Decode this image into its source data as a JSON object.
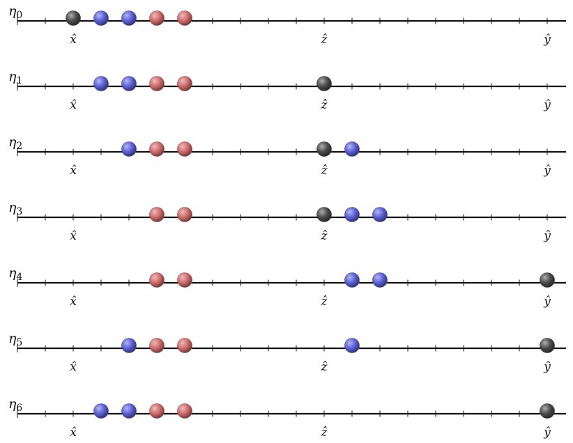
{
  "diagram": {
    "labels": {
      "x": "x̂",
      "z": "ẑ",
      "y": "ŷ"
    },
    "label_positions": {
      "x": 2,
      "z": 11,
      "y": 19
    },
    "tick_count": 20,
    "colors": {
      "black": "#4a4a4a",
      "blue": "#5b5fd6",
      "red": "#d06a6a",
      "line": "#111111"
    },
    "rows": [
      {
        "eta": "η",
        "sub": "0",
        "balls": [
          {
            "pos": 2,
            "c": "black"
          },
          {
            "pos": 3,
            "c": "blue"
          },
          {
            "pos": 4,
            "c": "blue"
          },
          {
            "pos": 5,
            "c": "red"
          },
          {
            "pos": 6,
            "c": "red"
          }
        ]
      },
      {
        "eta": "η",
        "sub": "1",
        "balls": [
          {
            "pos": 3,
            "c": "blue"
          },
          {
            "pos": 4,
            "c": "blue"
          },
          {
            "pos": 5,
            "c": "red"
          },
          {
            "pos": 6,
            "c": "red"
          },
          {
            "pos": 11,
            "c": "black"
          }
        ]
      },
      {
        "eta": "η",
        "sub": "2",
        "balls": [
          {
            "pos": 4,
            "c": "blue"
          },
          {
            "pos": 5,
            "c": "red"
          },
          {
            "pos": 6,
            "c": "red"
          },
          {
            "pos": 11,
            "c": "black"
          },
          {
            "pos": 12,
            "c": "blue"
          }
        ]
      },
      {
        "eta": "η",
        "sub": "3",
        "balls": [
          {
            "pos": 5,
            "c": "red"
          },
          {
            "pos": 6,
            "c": "red"
          },
          {
            "pos": 11,
            "c": "black"
          },
          {
            "pos": 12,
            "c": "blue"
          },
          {
            "pos": 13,
            "c": "blue"
          }
        ]
      },
      {
        "eta": "η",
        "sub": "4",
        "balls": [
          {
            "pos": 5,
            "c": "red"
          },
          {
            "pos": 6,
            "c": "red"
          },
          {
            "pos": 12,
            "c": "blue"
          },
          {
            "pos": 13,
            "c": "blue"
          },
          {
            "pos": 19,
            "c": "black"
          }
        ]
      },
      {
        "eta": "η",
        "sub": "5",
        "balls": [
          {
            "pos": 4,
            "c": "blue"
          },
          {
            "pos": 5,
            "c": "red"
          },
          {
            "pos": 6,
            "c": "red"
          },
          {
            "pos": 12,
            "c": "blue"
          },
          {
            "pos": 19,
            "c": "black"
          }
        ]
      },
      {
        "eta": "η",
        "sub": "6",
        "balls": [
          {
            "pos": 3,
            "c": "blue"
          },
          {
            "pos": 4,
            "c": "blue"
          },
          {
            "pos": 5,
            "c": "red"
          },
          {
            "pos": 6,
            "c": "red"
          },
          {
            "pos": 19,
            "c": "black"
          }
        ]
      }
    ]
  }
}
